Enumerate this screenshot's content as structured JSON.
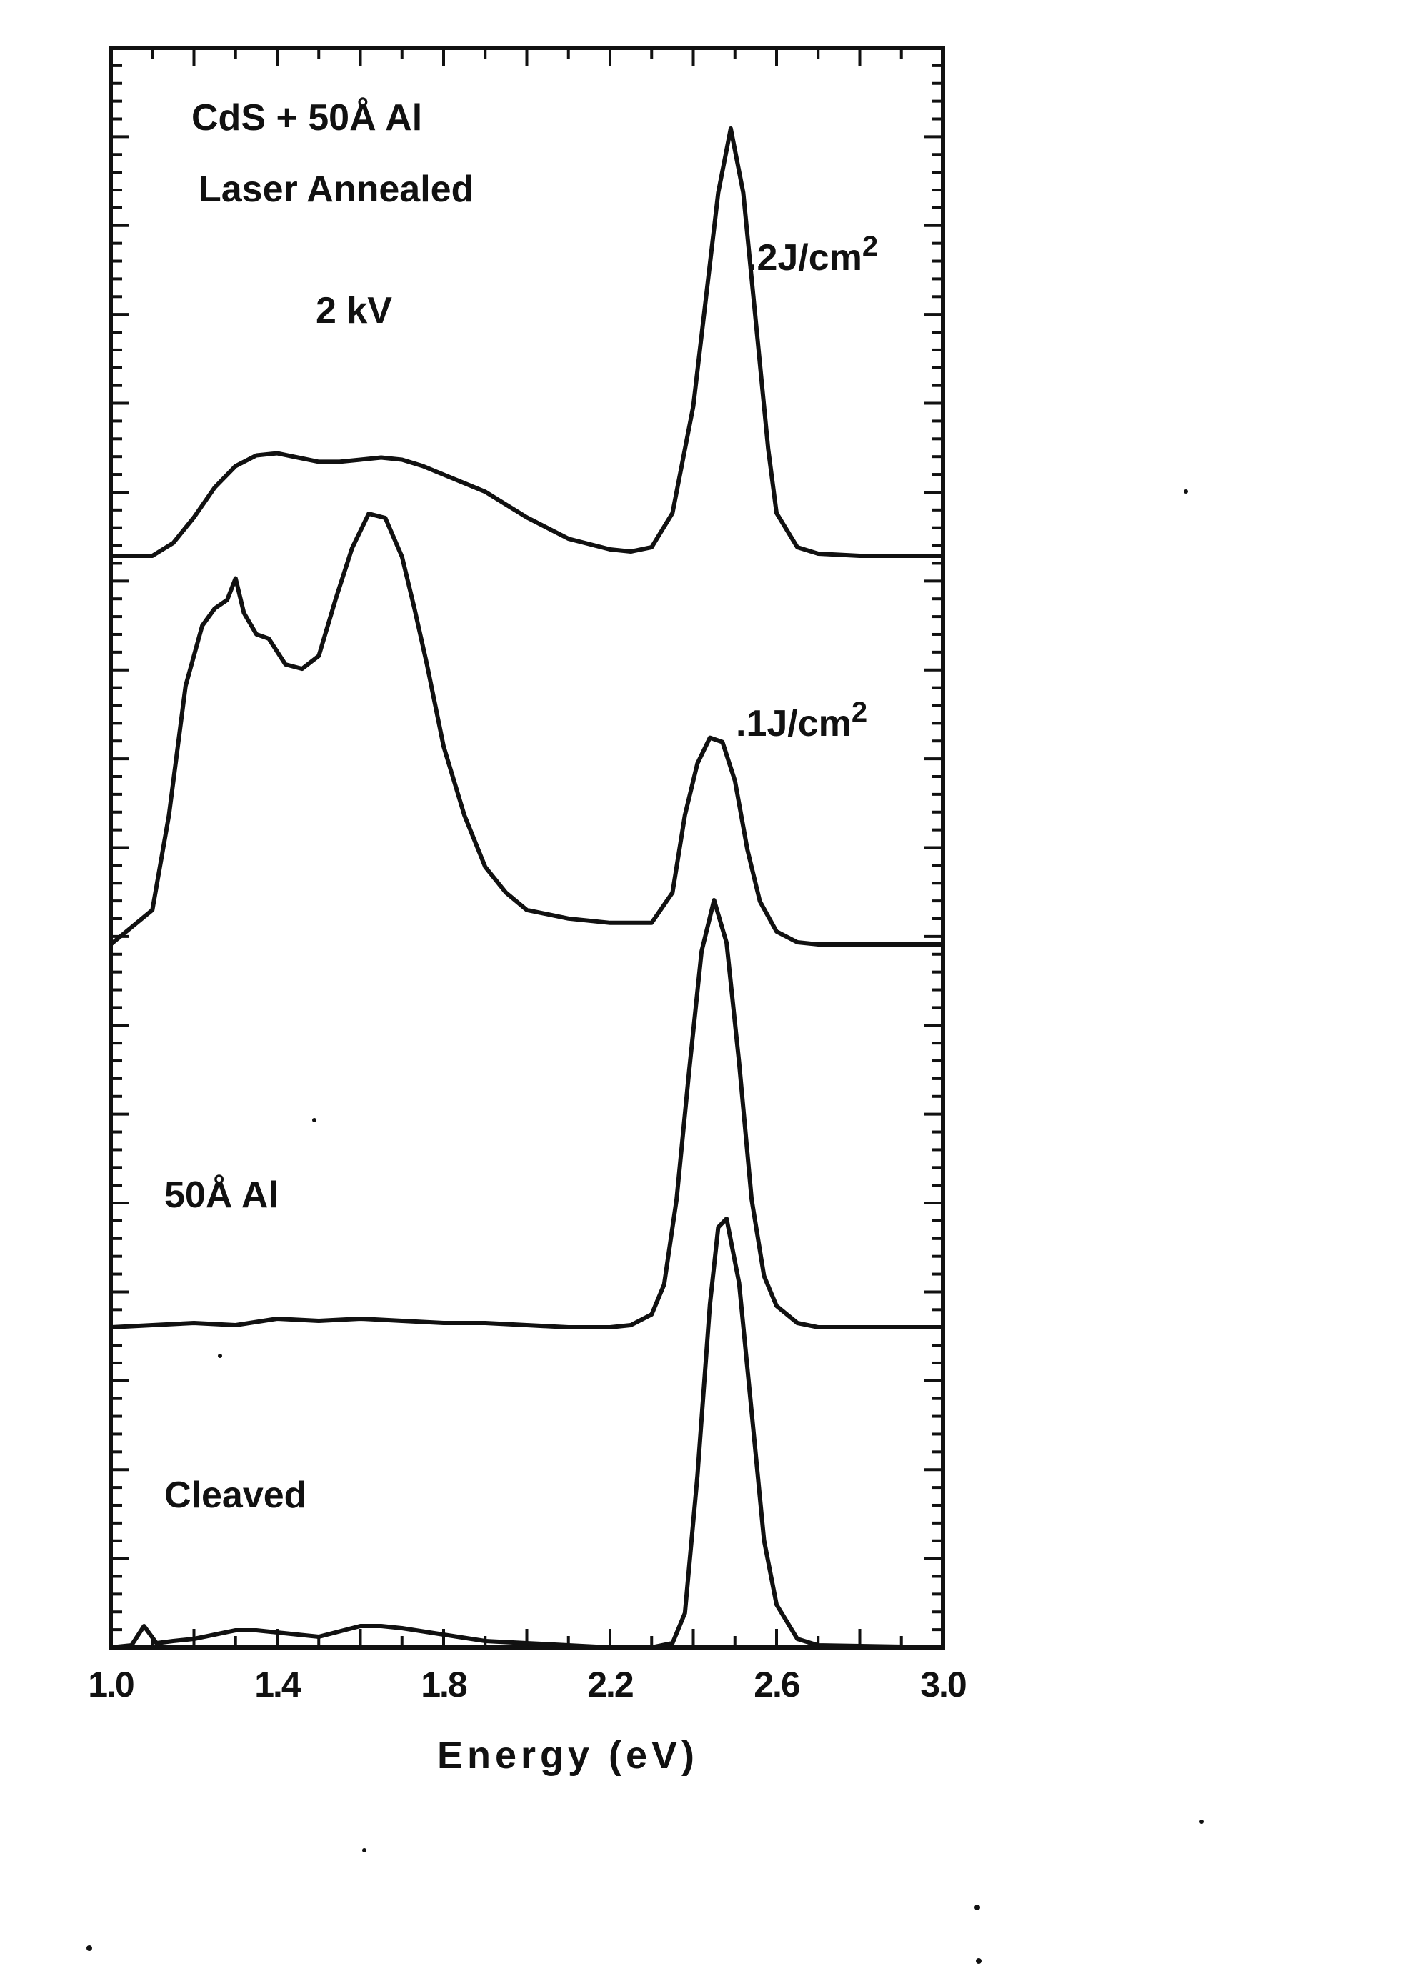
{
  "chart_data": {
    "type": "line",
    "title": "",
    "xlabel": "Energy (eV)",
    "ylabel": "",
    "xlim": [
      1.0,
      3.0
    ],
    "ylim": [
      0,
      1
    ],
    "grid": false,
    "x_ticks": [
      1.0,
      1.4,
      1.8,
      2.2,
      2.6,
      3.0
    ],
    "x_tick_labels": [
      "1.0",
      "1.4",
      "1.8",
      "2.2",
      "2.6",
      "3.0"
    ],
    "annotations": [
      {
        "id": "header_1",
        "text": "CdS + 50Å Al"
      },
      {
        "id": "header_2",
        "text": "Laser Annealed"
      },
      {
        "id": "voltage",
        "text": "2 kV"
      },
      {
        "id": "label_02",
        "text": ".2J/cm",
        "sup": "2"
      },
      {
        "id": "label_01",
        "text": ".1J/cm",
        "sup": "2"
      },
      {
        "id": "label_al",
        "text": "50Å Al"
      },
      {
        "id": "label_cleaved",
        "text": "Cleaved"
      }
    ],
    "series": [
      {
        "id": "s_02",
        "x": [
          1.0,
          1.1,
          1.15,
          1.2,
          1.25,
          1.3,
          1.35,
          1.4,
          1.45,
          1.5,
          1.55,
          1.6,
          1.65,
          1.7,
          1.75,
          1.8,
          1.9,
          2.0,
          2.1,
          2.2,
          2.25,
          2.3,
          2.35,
          2.4,
          2.43,
          2.46,
          2.49,
          2.52,
          2.55,
          2.58,
          2.6,
          2.65,
          2.7,
          2.8,
          3.0
        ],
        "y": [
          0.0,
          0.0,
          0.03,
          0.09,
          0.16,
          0.21,
          0.235,
          0.24,
          0.23,
          0.22,
          0.22,
          0.225,
          0.23,
          0.225,
          0.21,
          0.19,
          0.15,
          0.09,
          0.04,
          0.015,
          0.01,
          0.02,
          0.1,
          0.35,
          0.6,
          0.85,
          1.0,
          0.85,
          0.55,
          0.25,
          0.1,
          0.02,
          0.005,
          0.0,
          0.0
        ]
      },
      {
        "id": "s_01",
        "x": [
          1.0,
          1.1,
          1.14,
          1.18,
          1.22,
          1.25,
          1.28,
          1.3,
          1.32,
          1.35,
          1.38,
          1.42,
          1.46,
          1.5,
          1.54,
          1.58,
          1.62,
          1.66,
          1.7,
          1.73,
          1.76,
          1.8,
          1.85,
          1.9,
          1.95,
          2.0,
          2.1,
          2.2,
          2.3,
          2.35,
          2.38,
          2.41,
          2.44,
          2.47,
          2.5,
          2.53,
          2.56,
          2.6,
          2.65,
          2.7,
          3.0
        ],
        "y": [
          0.0,
          0.08,
          0.3,
          0.6,
          0.74,
          0.78,
          0.8,
          0.85,
          0.77,
          0.72,
          0.71,
          0.65,
          0.64,
          0.67,
          0.8,
          0.92,
          1.0,
          0.99,
          0.9,
          0.78,
          0.65,
          0.46,
          0.3,
          0.18,
          0.12,
          0.08,
          0.06,
          0.05,
          0.05,
          0.12,
          0.3,
          0.42,
          0.48,
          0.47,
          0.38,
          0.22,
          0.1,
          0.03,
          0.005,
          0.0,
          0.0
        ]
      },
      {
        "id": "s_al",
        "x": [
          1.0,
          1.1,
          1.2,
          1.3,
          1.4,
          1.5,
          1.6,
          1.7,
          1.8,
          1.9,
          2.0,
          2.1,
          2.2,
          2.25,
          2.3,
          2.33,
          2.36,
          2.39,
          2.42,
          2.45,
          2.48,
          2.51,
          2.54,
          2.57,
          2.6,
          2.65,
          2.7,
          3.0
        ],
        "y": [
          0.0,
          0.005,
          0.01,
          0.005,
          0.02,
          0.015,
          0.02,
          0.015,
          0.01,
          0.01,
          0.005,
          0.0,
          0.0,
          0.005,
          0.03,
          0.1,
          0.3,
          0.6,
          0.88,
          1.0,
          0.9,
          0.62,
          0.3,
          0.12,
          0.05,
          0.01,
          0.0,
          0.0
        ]
      },
      {
        "id": "s_cleaved",
        "x": [
          1.0,
          1.05,
          1.08,
          1.11,
          1.15,
          1.2,
          1.25,
          1.3,
          1.35,
          1.4,
          1.5,
          1.6,
          1.65,
          1.7,
          1.8,
          1.9,
          2.0,
          2.1,
          2.2,
          2.3,
          2.35,
          2.38,
          2.41,
          2.44,
          2.46,
          2.48,
          2.51,
          2.54,
          2.57,
          2.6,
          2.65,
          2.7,
          3.0
        ],
        "y": [
          0.0,
          0.005,
          0.05,
          0.01,
          0.015,
          0.02,
          0.03,
          0.04,
          0.04,
          0.035,
          0.025,
          0.05,
          0.05,
          0.045,
          0.03,
          0.015,
          0.01,
          0.005,
          0.0,
          0.0,
          0.01,
          0.08,
          0.4,
          0.8,
          0.98,
          1.0,
          0.85,
          0.55,
          0.25,
          0.1,
          0.02,
          0.005,
          0.0
        ]
      }
    ]
  }
}
